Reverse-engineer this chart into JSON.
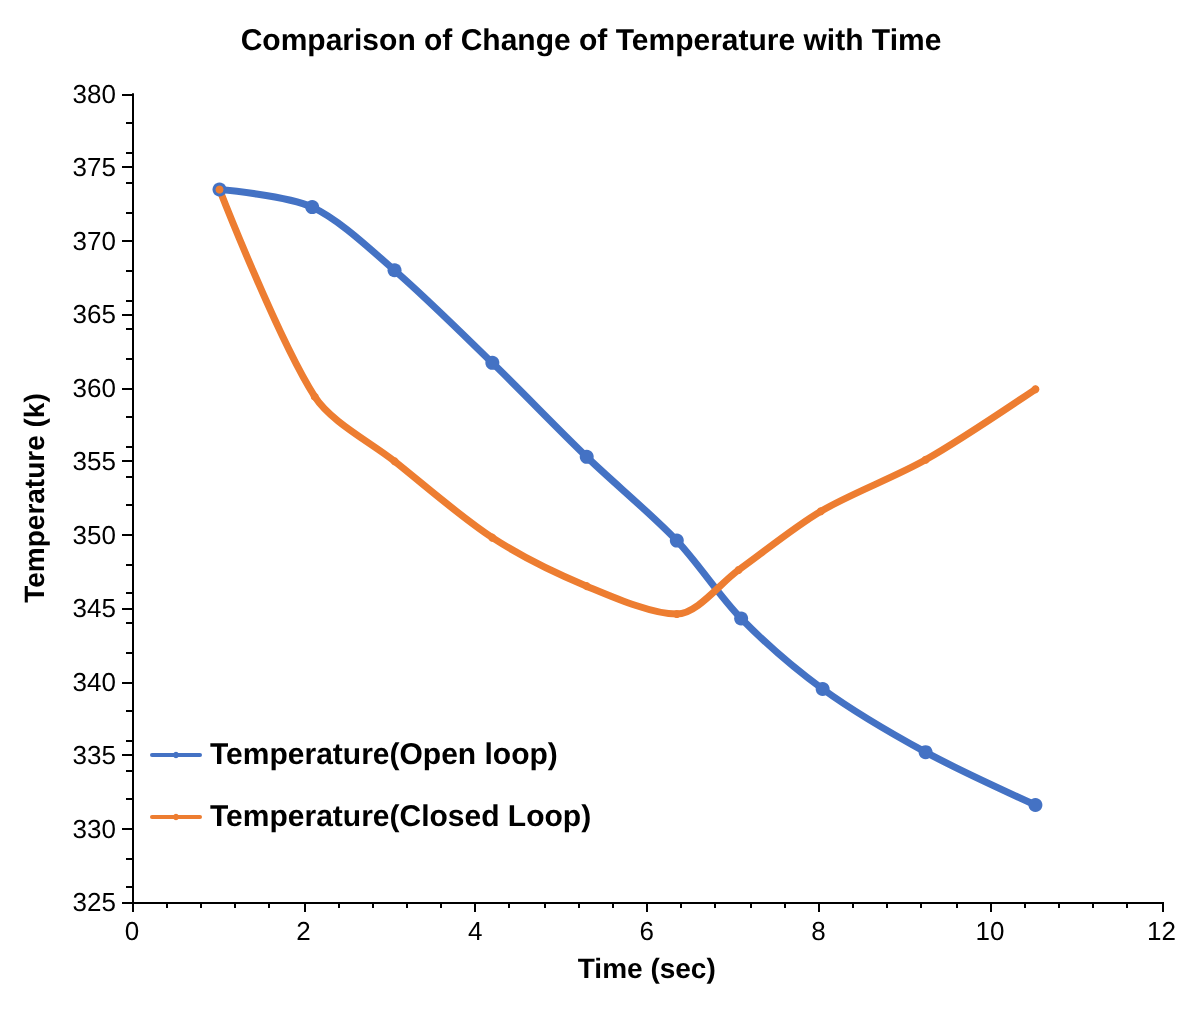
{
  "chart_data": {
    "type": "line",
    "title": "Comparison of Change of Temperature with Time",
    "xlabel": "Time (sec)",
    "ylabel": "Temperature (k)",
    "xlim": [
      0,
      12
    ],
    "xticks": [
      0,
      2,
      4,
      6,
      8,
      10,
      12
    ],
    "ylim": [
      325,
      380
    ],
    "yticks": [
      325,
      330,
      335,
      340,
      345,
      350,
      355,
      360,
      365,
      370,
      375,
      380
    ],
    "grid": false,
    "legend": "bottom left",
    "marker": "circle",
    "line_style": "solid",
    "series": [
      {
        "name": "Temperature(Open loop)",
        "color": "#4472c4",
        "x": [
          1.02,
          2.1,
          3.06,
          4.2,
          5.3,
          6.35,
          7.1,
          8.05,
          9.25,
          10.53
        ],
        "values": [
          373.5,
          372.3,
          368,
          361.7,
          355.3,
          349.6,
          344.3,
          339.5,
          335.2,
          331.6
        ]
      },
      {
        "name": "Temperature(Closed Loop)",
        "color": "#ed7d31",
        "x": [
          1.02,
          2.13,
          3.06,
          4.2,
          5.3,
          6.35,
          7.07,
          8.03,
          9.25,
          10.53
        ],
        "values": [
          373.5,
          359.4,
          355,
          349.8,
          346.5,
          344.6,
          347.6,
          351.6,
          355.1,
          359.9
        ]
      }
    ]
  }
}
